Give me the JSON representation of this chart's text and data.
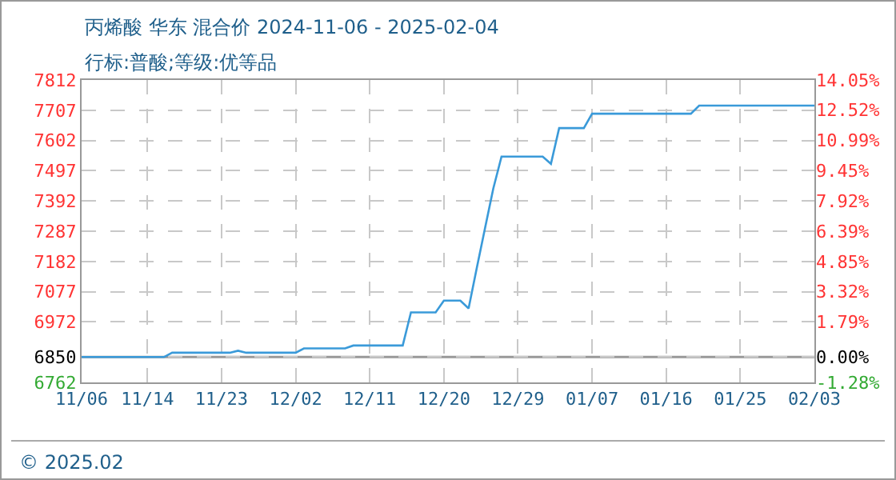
{
  "chart_data": {
    "type": "line",
    "title": "丙烯酸 华东 混合价 2024-11-06 - 2025-02-04",
    "subtitle": "行标:普酸;等级:优等品",
    "x": [
      "2024-11-06",
      "2024-11-16",
      "2024-11-17",
      "2024-11-24",
      "2024-11-25",
      "2024-11-26",
      "2024-12-02",
      "2024-12-03",
      "2024-12-08",
      "2024-12-09",
      "2024-12-15",
      "2024-12-16",
      "2024-12-19",
      "2024-12-20",
      "2024-12-22",
      "2024-12-23",
      "2024-12-24",
      "2024-12-25",
      "2024-12-26",
      "2024-12-27",
      "2025-01-01",
      "2025-01-02",
      "2025-01-03",
      "2025-01-06",
      "2025-01-07",
      "2025-01-19",
      "2025-01-20",
      "2025-02-03"
    ],
    "series": [
      {
        "color": "#3a9ad9",
        "values": [
          6850,
          6850,
          6865,
          6865,
          6872,
          6865,
          6865,
          6880,
          6880,
          6890,
          6890,
          7005,
          7005,
          7046,
          7046,
          7019,
          7160,
          7298,
          7435,
          7546,
          7546,
          7521,
          7645,
          7645,
          7695,
          7695,
          7723,
          7723
        ]
      }
    ],
    "xlim": [
      "2024-11-06",
      "2025-02-03"
    ],
    "xticks": [
      {
        "value": "2024-11-06",
        "label": "11/06"
      },
      {
        "value": "2024-11-14",
        "label": "11/14"
      },
      {
        "value": "2024-11-23",
        "label": "11/23"
      },
      {
        "value": "2024-12-02",
        "label": "12/02"
      },
      {
        "value": "2024-12-11",
        "label": "12/11"
      },
      {
        "value": "2024-12-20",
        "label": "12/20"
      },
      {
        "value": "2024-12-29",
        "label": "12/29"
      },
      {
        "value": "2025-01-07",
        "label": "01/07"
      },
      {
        "value": "2025-01-16",
        "label": "01/16"
      },
      {
        "value": "2025-01-25",
        "label": "01/25"
      },
      {
        "value": "2025-02-03",
        "label": "02/03"
      }
    ],
    "ylim": [
      6762,
      7812
    ],
    "yticks": [
      6762,
      6850,
      6972,
      7077,
      7182,
      7287,
      7392,
      7497,
      7602,
      7707,
      7812
    ],
    "y2lim": [
      -1.28,
      14.05
    ],
    "y2ticks": [
      {
        "value": -1.28,
        "label": "-1.28%"
      },
      {
        "value": 0,
        "label": "0.00%"
      },
      {
        "value": 1.79,
        "label": "1.79%"
      },
      {
        "value": 3.32,
        "label": "3.32%"
      },
      {
        "value": 4.85,
        "label": "4.85%"
      },
      {
        "value": 6.39,
        "label": "6.39%"
      },
      {
        "value": 7.92,
        "label": "7.92%"
      },
      {
        "value": 9.45,
        "label": "9.45%"
      },
      {
        "value": 10.99,
        "label": "10.99%"
      },
      {
        "value": 12.52,
        "label": "12.52%"
      },
      {
        "value": 14.05,
        "label": "14.05%"
      }
    ],
    "ref_lines": [
      {
        "axis": "y",
        "value": 6850,
        "color": "#999999"
      }
    ],
    "annotations": [
      "© 2025.02"
    ],
    "grid": true,
    "marker": "none",
    "line_style": "solid"
  }
}
